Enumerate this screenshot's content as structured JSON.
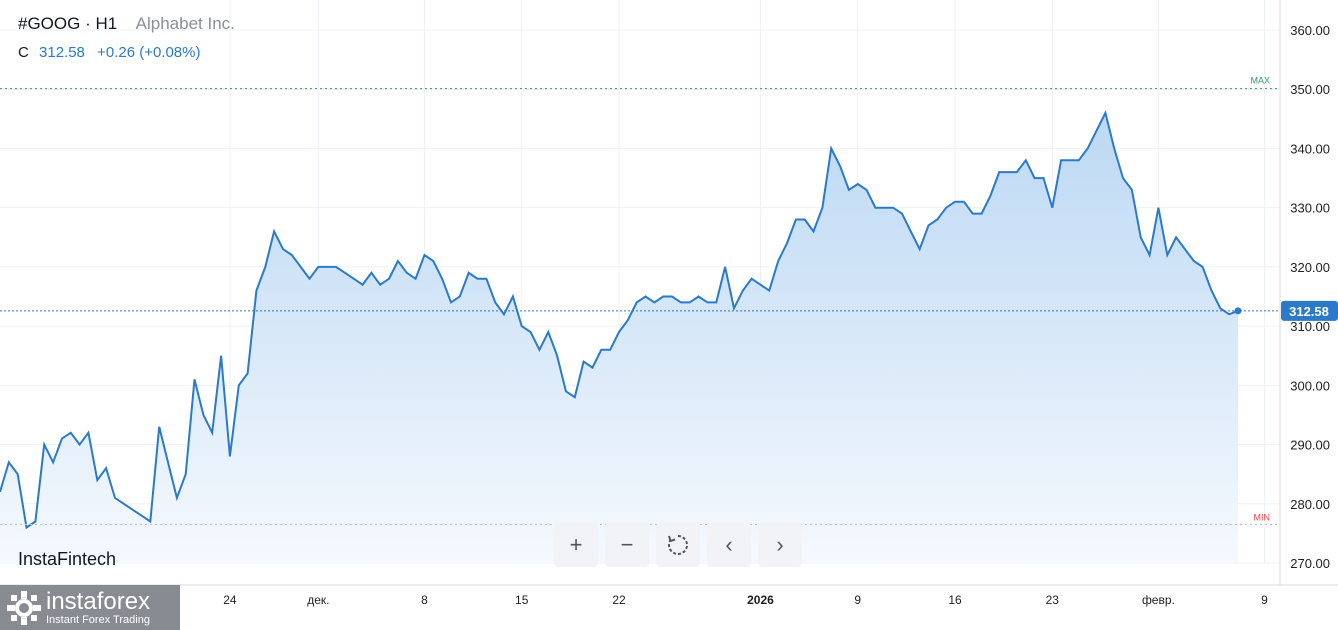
{
  "header": {
    "symbol": "#GOOG · H1",
    "company": "Alphabet Inc.",
    "close_label": "C",
    "close_value": "312.58",
    "change": "+0.26 (+0.08%)"
  },
  "brand": "InstaFintech",
  "toolbar": [
    {
      "name": "zoom-in-button",
      "icon": "+"
    },
    {
      "name": "zoom-out-button",
      "icon": "−"
    },
    {
      "name": "reset-button",
      "icon": "reset-icon"
    },
    {
      "name": "scroll-left-button",
      "icon": "‹"
    },
    {
      "name": "scroll-right-button",
      "icon": "›"
    }
  ],
  "logo": {
    "main": "instaforex",
    "sub": "Instant Forex Trading"
  },
  "chart_data": {
    "type": "area",
    "y_ticks": [
      "360.00",
      "350.00",
      "340.00",
      "330.00",
      "320.00",
      "310.00",
      "300.00",
      "290.00",
      "280.00",
      "270.00"
    ],
    "ylim": [
      270,
      360
    ],
    "x_labels": [
      {
        "label": "24",
        "bold": false,
        "index": 26
      },
      {
        "label": "дек.",
        "bold": false,
        "index": 36
      },
      {
        "label": "8",
        "bold": false,
        "index": 48
      },
      {
        "label": "15",
        "bold": false,
        "index": 59
      },
      {
        "label": "22",
        "bold": false,
        "index": 70
      },
      {
        "label": "2026",
        "bold": true,
        "index": 86
      },
      {
        "label": "9",
        "bold": false,
        "index": 97
      },
      {
        "label": "16",
        "bold": false,
        "index": 108
      },
      {
        "label": "23",
        "bold": false,
        "index": 119
      },
      {
        "label": "февр.",
        "bold": false,
        "index": 131
      },
      {
        "label": "9",
        "bold": false,
        "index": 143
      }
    ],
    "series": [
      {
        "values": [
          282,
          287,
          285,
          276,
          277,
          290,
          287,
          291,
          292,
          290,
          292,
          284,
          286,
          281,
          280,
          279,
          278,
          277,
          293,
          287,
          281,
          285,
          301,
          295,
          292,
          305,
          288,
          300,
          302,
          316,
          320,
          326,
          323,
          322,
          320,
          318,
          320,
          320,
          320,
          319,
          318,
          317,
          319,
          317,
          318,
          321,
          319,
          318,
          322,
          321,
          318,
          314,
          315,
          319,
          318,
          318,
          314,
          312,
          315,
          310,
          309,
          306,
          309,
          305,
          299,
          298,
          304,
          303,
          306,
          306,
          309,
          311,
          314,
          315,
          314,
          315,
          315,
          314,
          314,
          315,
          314,
          314,
          320,
          313,
          316,
          318,
          317,
          316,
          321,
          324,
          328,
          328,
          326,
          330,
          340,
          337,
          333,
          334,
          333,
          330,
          330,
          330,
          329,
          326,
          323,
          327,
          328,
          330,
          331,
          331,
          329,
          329,
          332,
          336,
          336,
          336,
          338,
          335,
          335,
          330,
          338,
          338,
          338,
          340,
          343,
          346,
          340,
          335,
          333,
          325,
          322,
          330,
          322,
          325,
          323,
          321,
          320,
          316,
          313,
          312,
          312.58
        ]
      }
    ],
    "last_value": "312.58",
    "max_label": "MAX",
    "min_label": "MIN",
    "max_value": 350.1,
    "min_value": 276.5,
    "colors": {
      "line": "#2a7ac9",
      "fill_top": "#bcd8f3",
      "fill_bottom": "#f5f9fe",
      "max": "#2e9a6a",
      "min": "#e24a4a",
      "badge": "#2a7ac9"
    }
  }
}
